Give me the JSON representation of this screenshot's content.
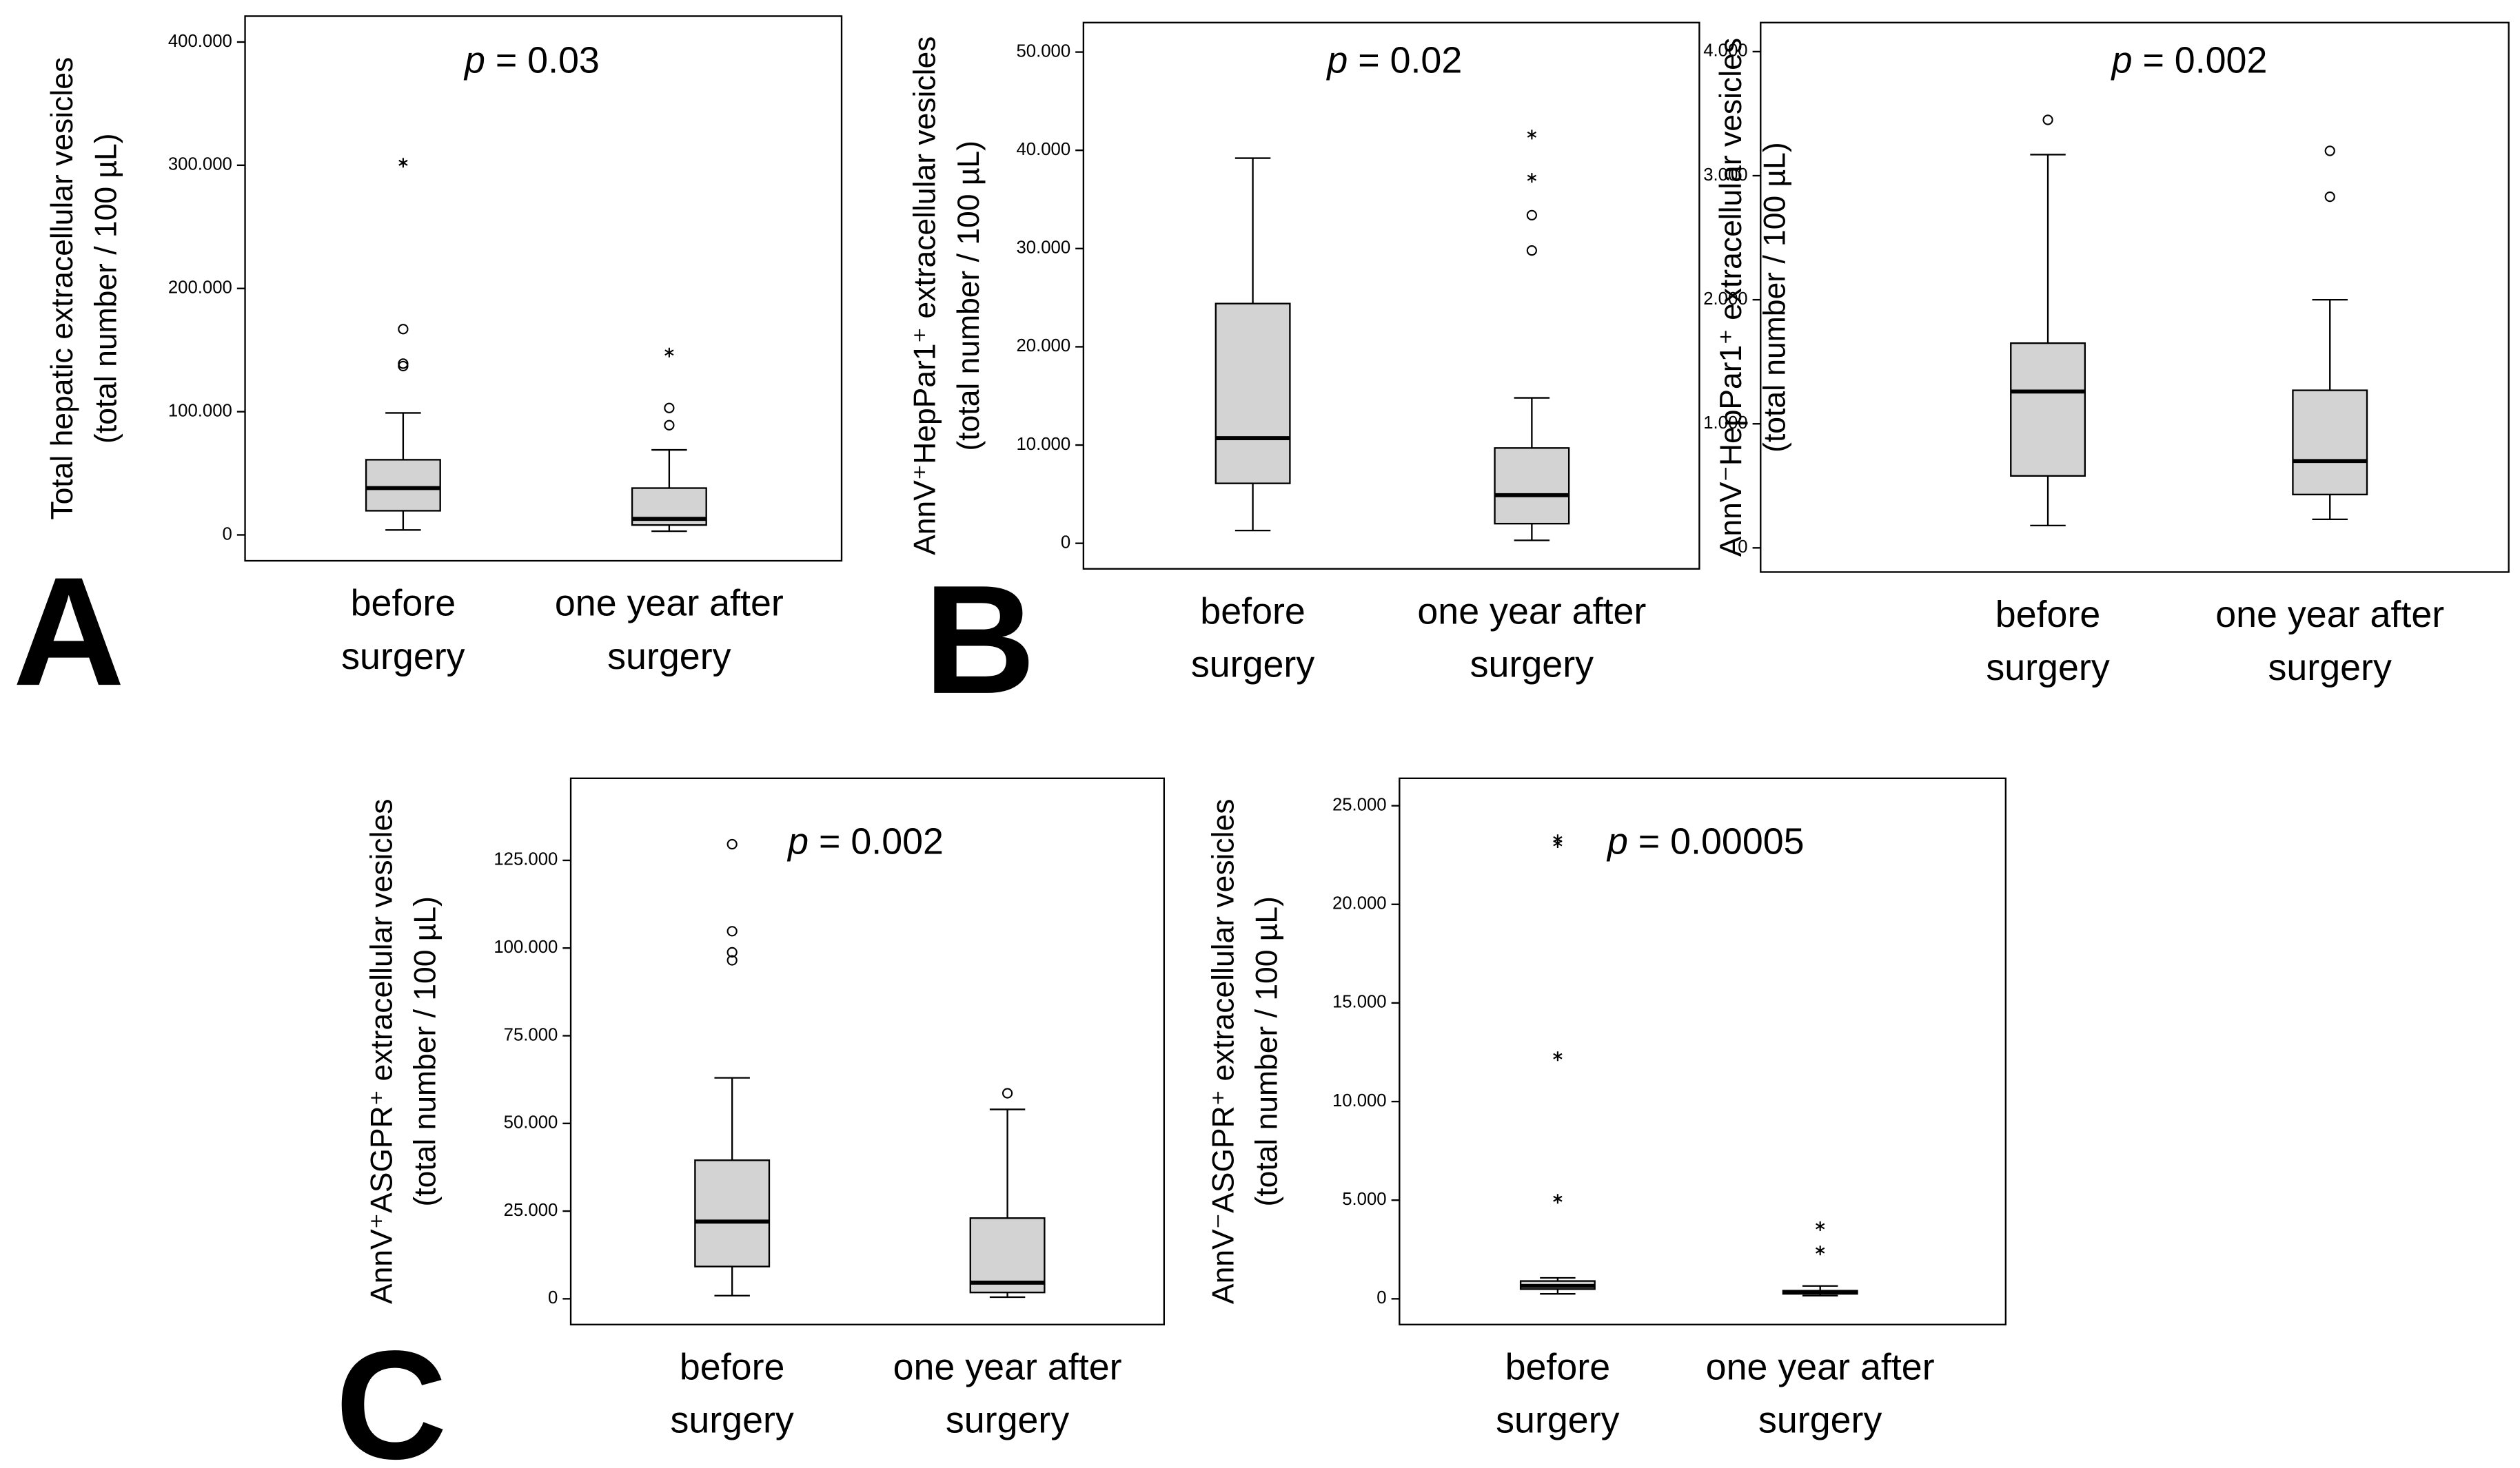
{
  "panel_labels": [
    "A",
    "B",
    "C"
  ],
  "chart_data": [
    {
      "type": "box",
      "p_symbol": "p",
      "annotation": " = 0.03",
      "ylabel": [
        "Total hepatic extracellular vesicles",
        "(total number / 100 µL)"
      ],
      "categories": [
        "before surgery",
        "one year after surgery"
      ],
      "ylim": [
        -21000,
        421000
      ],
      "yticks": [
        0,
        {
          "value": 100000,
          "label": "100.000"
        },
        {
          "value": 200000,
          "label": "200.000"
        },
        {
          "value": 300000,
          "label": "300.000"
        },
        {
          "value": 400000,
          "label": "400.000"
        }
      ],
      "color": "#d3d3d3",
      "boxes": [
        {
          "whisker_low": 4000,
          "q1": 19600,
          "median": 38000,
          "q3": 61000,
          "whisker_high": 99000,
          "outliers": [
            167000,
            139000,
            137000
          ],
          "extremes": [
            302000
          ]
        },
        {
          "whisker_low": 3000,
          "q1": 8000,
          "median": 13000,
          "q3": 38000,
          "whisker_high": 69000,
          "outliers": [
            103000,
            89000
          ],
          "extremes": [
            148000
          ]
        }
      ]
    },
    {
      "type": "box",
      "p_symbol": "p",
      "annotation": " = 0.02",
      "ylabel": [
        "AnnV⁺HepPar1⁺ extracellular vesicles",
        "(total number / 100 µL)"
      ],
      "categories": [
        "before surgery",
        "one year after surgery"
      ],
      "ylim": [
        -2600,
        53000
      ],
      "yticks": [
        0,
        {
          "value": 10000,
          "label": "10.000"
        },
        {
          "value": 20000,
          "label": "20.000"
        },
        {
          "value": 30000,
          "label": "30.000"
        },
        {
          "value": 40000,
          "label": "40.000"
        },
        {
          "value": 50000,
          "label": "50.000"
        }
      ],
      "color": "#d3d3d3",
      "boxes": [
        {
          "whisker_low": 1300,
          "q1": 6100,
          "median": 10700,
          "q3": 24400,
          "whisker_high": 39200,
          "outliers": [],
          "extremes": []
        },
        {
          "whisker_low": 300,
          "q1": 2000,
          "median": 4900,
          "q3": 9700,
          "whisker_high": 14800,
          "outliers": [
            29800,
            33400
          ],
          "extremes": [
            37200,
            41600
          ]
        }
      ]
    },
    {
      "type": "box",
      "p_symbol": "p",
      "annotation": " = 0.002",
      "ylabel": [
        "AnnV⁻HepPar1⁺ extracellular vesicles",
        "(total number / 100 µL)"
      ],
      "categories": [
        "before surgery",
        "one year after surgery"
      ],
      "ylim": [
        -195,
        4234
      ],
      "yticks": [
        0,
        {
          "value": 1000,
          "label": "1.000"
        },
        {
          "value": 2000,
          "label": "2.000"
        },
        {
          "value": 3000,
          "label": "3.000"
        },
        {
          "value": 4000,
          "label": "4.000"
        }
      ],
      "color": "#d3d3d3",
      "boxes": [
        {
          "whisker_low": 180,
          "q1": 580,
          "median": 1260,
          "q3": 1650,
          "whisker_high": 3170,
          "outliers": [
            3450
          ],
          "extremes": []
        },
        {
          "whisker_low": 230,
          "q1": 430,
          "median": 700,
          "q3": 1270,
          "whisker_high": 2000,
          "outliers": [
            2830,
            3200
          ],
          "extremes": []
        }
      ]
    },
    {
      "type": "box",
      "p_symbol": "p",
      "annotation": " = 0.002",
      "ylabel": [
        "AnnV⁺ASGPR⁺ extracellular vesicles",
        "(total number / 100 µL)"
      ],
      "categories": [
        "before surgery",
        "one year after surgery"
      ],
      "ylim": [
        -7350,
        148400
      ],
      "yticks": [
        0,
        {
          "value": 25000,
          "label": "25.000"
        },
        {
          "value": 50000,
          "label": "50.000"
        },
        {
          "value": 75000,
          "label": "75.000"
        },
        {
          "value": 100000,
          "label": "100.000"
        },
        {
          "value": 125000,
          "label": "125.000"
        }
      ],
      "color": "#d3d3d3",
      "boxes": [
        {
          "whisker_low": 900,
          "q1": 9200,
          "median": 22000,
          "q3": 39500,
          "whisker_high": 63000,
          "outliers": [
            129600,
            104800,
            98800,
            96500
          ],
          "extremes": []
        },
        {
          "whisker_low": 460,
          "q1": 1800,
          "median": 4600,
          "q3": 23000,
          "whisker_high": 54000,
          "outliers": [
            58600
          ],
          "extremes": []
        }
      ]
    },
    {
      "type": "box",
      "p_symbol": "p",
      "annotation": " = 0.00005",
      "ylabel": [
        "AnnV⁻ASGPR⁺ extracellular vesicles",
        "(total number / 100 µL)"
      ],
      "categories": [
        "before surgery",
        "one year after surgery"
      ],
      "ylim": [
        -1307,
        26390
      ],
      "yticks": [
        0,
        {
          "value": 5000,
          "label": "5.000"
        },
        {
          "value": 10000,
          "label": "10.000"
        },
        {
          "value": 15000,
          "label": "15.000"
        },
        {
          "value": 20000,
          "label": "20.000"
        },
        {
          "value": 25000,
          "label": "25.000"
        }
      ],
      "color": "#d3d3d3",
      "boxes": [
        {
          "whisker_low": 250,
          "q1": 490,
          "median": 650,
          "q3": 900,
          "whisker_high": 1060,
          "outliers": [],
          "extremes": [
            23300,
            23100,
            12300,
            5070
          ]
        },
        {
          "whisker_low": 160,
          "q1": 250,
          "median": 330,
          "q3": 410,
          "whisker_high": 650,
          "outliers": [],
          "extremes": [
            2450,
            3680
          ]
        }
      ]
    }
  ]
}
